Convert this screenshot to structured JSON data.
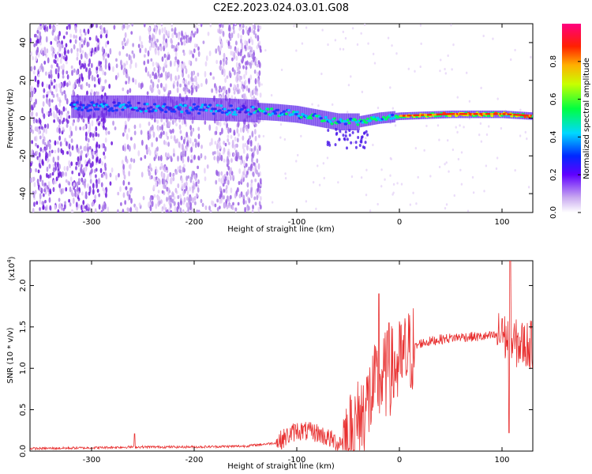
{
  "title": "C2E2.2023.024.03.01.G08",
  "chart_data": [
    {
      "type": "heatmap",
      "xlabel": "Height of straight line (km)",
      "ylabel": "Frequency (Hz)",
      "xlim": [
        -360,
        130
      ],
      "ylim": [
        -50,
        50
      ],
      "xticks": [
        -300,
        -200,
        -100,
        0,
        100
      ],
      "yticks": [
        -40,
        -20,
        0,
        20,
        40
      ],
      "colorbar": {
        "label": "Normalized spectral amplitude",
        "range": [
          0.0,
          1.0
        ],
        "ticks": [
          "0.0",
          "0.2",
          "0.4",
          "0.6",
          "0.8"
        ],
        "colormap": "rainbow-white-to-magenta"
      },
      "description_ridge": [
        {
          "x": -280,
          "freq": 6
        },
        {
          "x": -250,
          "freq": 6
        },
        {
          "x": -200,
          "freq": 5
        },
        {
          "x": -150,
          "freq": 4
        },
        {
          "x": -120,
          "freq": 3
        },
        {
          "x": -100,
          "freq": 2
        },
        {
          "x": -60,
          "freq": -2
        },
        {
          "x": -40,
          "freq": -2
        },
        {
          "x": -20,
          "freq": 0
        },
        {
          "x": 0,
          "freq": 1
        },
        {
          "x": 50,
          "freq": 2
        },
        {
          "x": 100,
          "freq": 2
        },
        {
          "x": 130,
          "freq": 1
        }
      ]
    },
    {
      "type": "line",
      "xlabel": "Height of straight line (km)",
      "ylabel": "SNR (10 * v/v)",
      "yscale_label": "(x10",
      "yscale_exp": "4",
      "yscale_close": ")",
      "xlim": [
        -360,
        130
      ],
      "ylim": [
        0,
        2.3
      ],
      "xticks": [
        -300,
        -200,
        -100,
        0,
        100
      ],
      "yticks": [
        "0.0",
        "0.5",
        "1.0",
        "1.5",
        "2.0"
      ],
      "series_color": "#e83030",
      "envelope": [
        {
          "x": -360,
          "y": 0.03
        },
        {
          "x": -300,
          "y": 0.04
        },
        {
          "x": -260,
          "y": 0.05
        },
        {
          "x": -200,
          "y": 0.05
        },
        {
          "x": -150,
          "y": 0.06
        },
        {
          "x": -120,
          "y": 0.1
        },
        {
          "x": -100,
          "y": 0.25
        },
        {
          "x": -80,
          "y": 0.22
        },
        {
          "x": -60,
          "y": 0.1
        },
        {
          "x": -50,
          "y": 0.15
        },
        {
          "x": -40,
          "y": 0.35
        },
        {
          "x": -30,
          "y": 0.6
        },
        {
          "x": -20,
          "y": 0.85
        },
        {
          "x": -10,
          "y": 0.95
        },
        {
          "x": 0,
          "y": 1.05
        },
        {
          "x": 10,
          "y": 1.2
        },
        {
          "x": 20,
          "y": 1.3
        },
        {
          "x": 40,
          "y": 1.35
        },
        {
          "x": 60,
          "y": 1.38
        },
        {
          "x": 80,
          "y": 1.38
        },
        {
          "x": 100,
          "y": 1.4
        },
        {
          "x": 110,
          "y": 1.3
        },
        {
          "x": 130,
          "y": 1.28
        }
      ],
      "peaks": [
        {
          "x": -258,
          "y": 0.21
        },
        {
          "x": -20,
          "y": 1.9
        },
        {
          "x": -10,
          "y": 1.55
        },
        {
          "x": 100,
          "y": 1.6
        },
        {
          "x": 108,
          "y": 2.3
        },
        {
          "x": 107,
          "y": 0.22
        }
      ]
    }
  ]
}
